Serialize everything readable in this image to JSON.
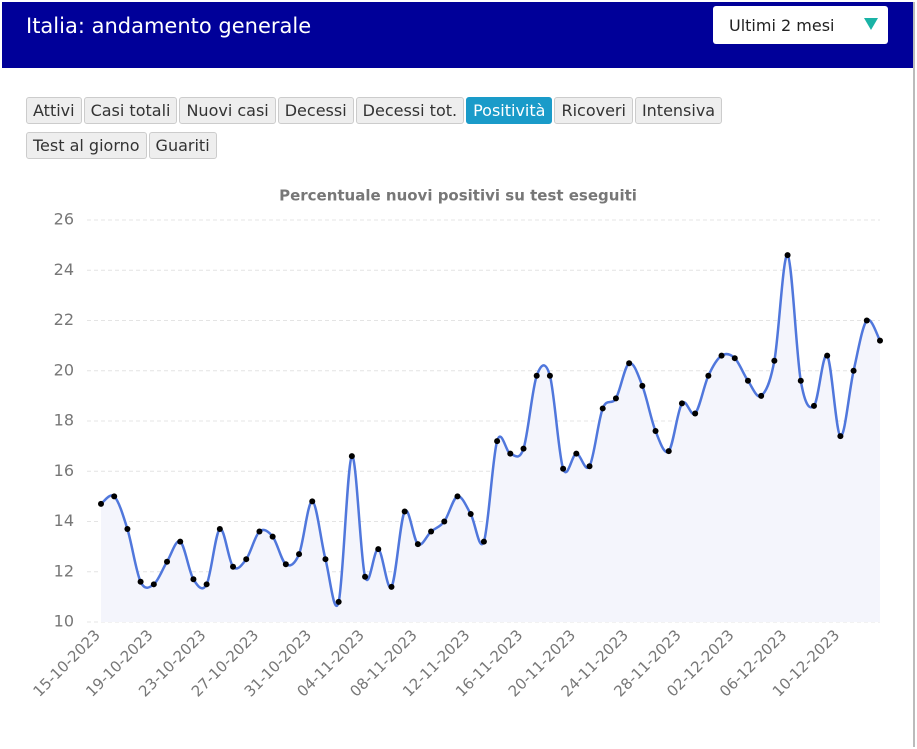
{
  "header": {
    "title": "Italia: andamento generale",
    "select": "Ultimi 2 mesi"
  },
  "tabs": [
    "Attivi",
    "Casi totali",
    "Nuovi casi",
    "Decessi",
    "Decessi tot.",
    "Positività",
    "Ricoveri",
    "Intensiva",
    "Test al giorno",
    "Guariti"
  ],
  "active_tab": 5,
  "chart_data": {
    "type": "line",
    "title": "Percentuale nuovi positivi su test eseguiti",
    "categories": [
      "15-10-2023",
      null,
      null,
      null,
      "19-10-2023",
      null,
      null,
      null,
      "23-10-2023",
      null,
      null,
      null,
      "27-10-2023",
      null,
      null,
      null,
      "31-10-2023",
      null,
      null,
      null,
      "04-11-2023",
      null,
      null,
      null,
      "08-11-2023",
      null,
      null,
      null,
      "12-11-2023",
      null,
      null,
      null,
      "16-11-2023",
      null,
      null,
      null,
      "20-11-2023",
      null,
      null,
      null,
      "24-11-2023",
      null,
      null,
      null,
      "28-11-2023",
      null,
      null,
      null,
      "02-12-2023",
      null,
      null,
      null,
      "06-12-2023",
      null,
      null,
      null,
      "10-12-2023",
      null,
      null,
      null
    ],
    "series": [
      {
        "color": "#5077dc",
        "values": [
          14.7,
          15.0,
          13.7,
          11.6,
          11.5,
          12.4,
          13.2,
          11.7,
          11.5,
          13.7,
          12.2,
          12.5,
          13.6,
          13.4,
          12.3,
          12.7,
          14.8,
          12.5,
          10.8,
          16.6,
          11.8,
          12.9,
          11.4,
          14.4,
          13.1,
          13.6,
          14.0,
          15.0,
          14.3,
          13.2,
          17.2,
          16.7,
          16.9,
          19.8,
          19.8,
          16.1,
          16.7,
          16.2,
          18.5,
          18.9,
          20.3,
          19.4,
          17.6,
          16.8,
          18.7,
          18.3,
          19.8,
          20.6,
          20.5,
          19.6,
          19.0,
          20.4,
          24.6,
          19.6,
          18.6,
          20.6,
          17.4,
          20.0,
          22.0,
          21.2
        ]
      }
    ],
    "ylim": [
      10,
      26
    ],
    "yticks": [
      10,
      12,
      14,
      16,
      18,
      20,
      22,
      24,
      26
    ],
    "grid": true,
    "area": true
  }
}
